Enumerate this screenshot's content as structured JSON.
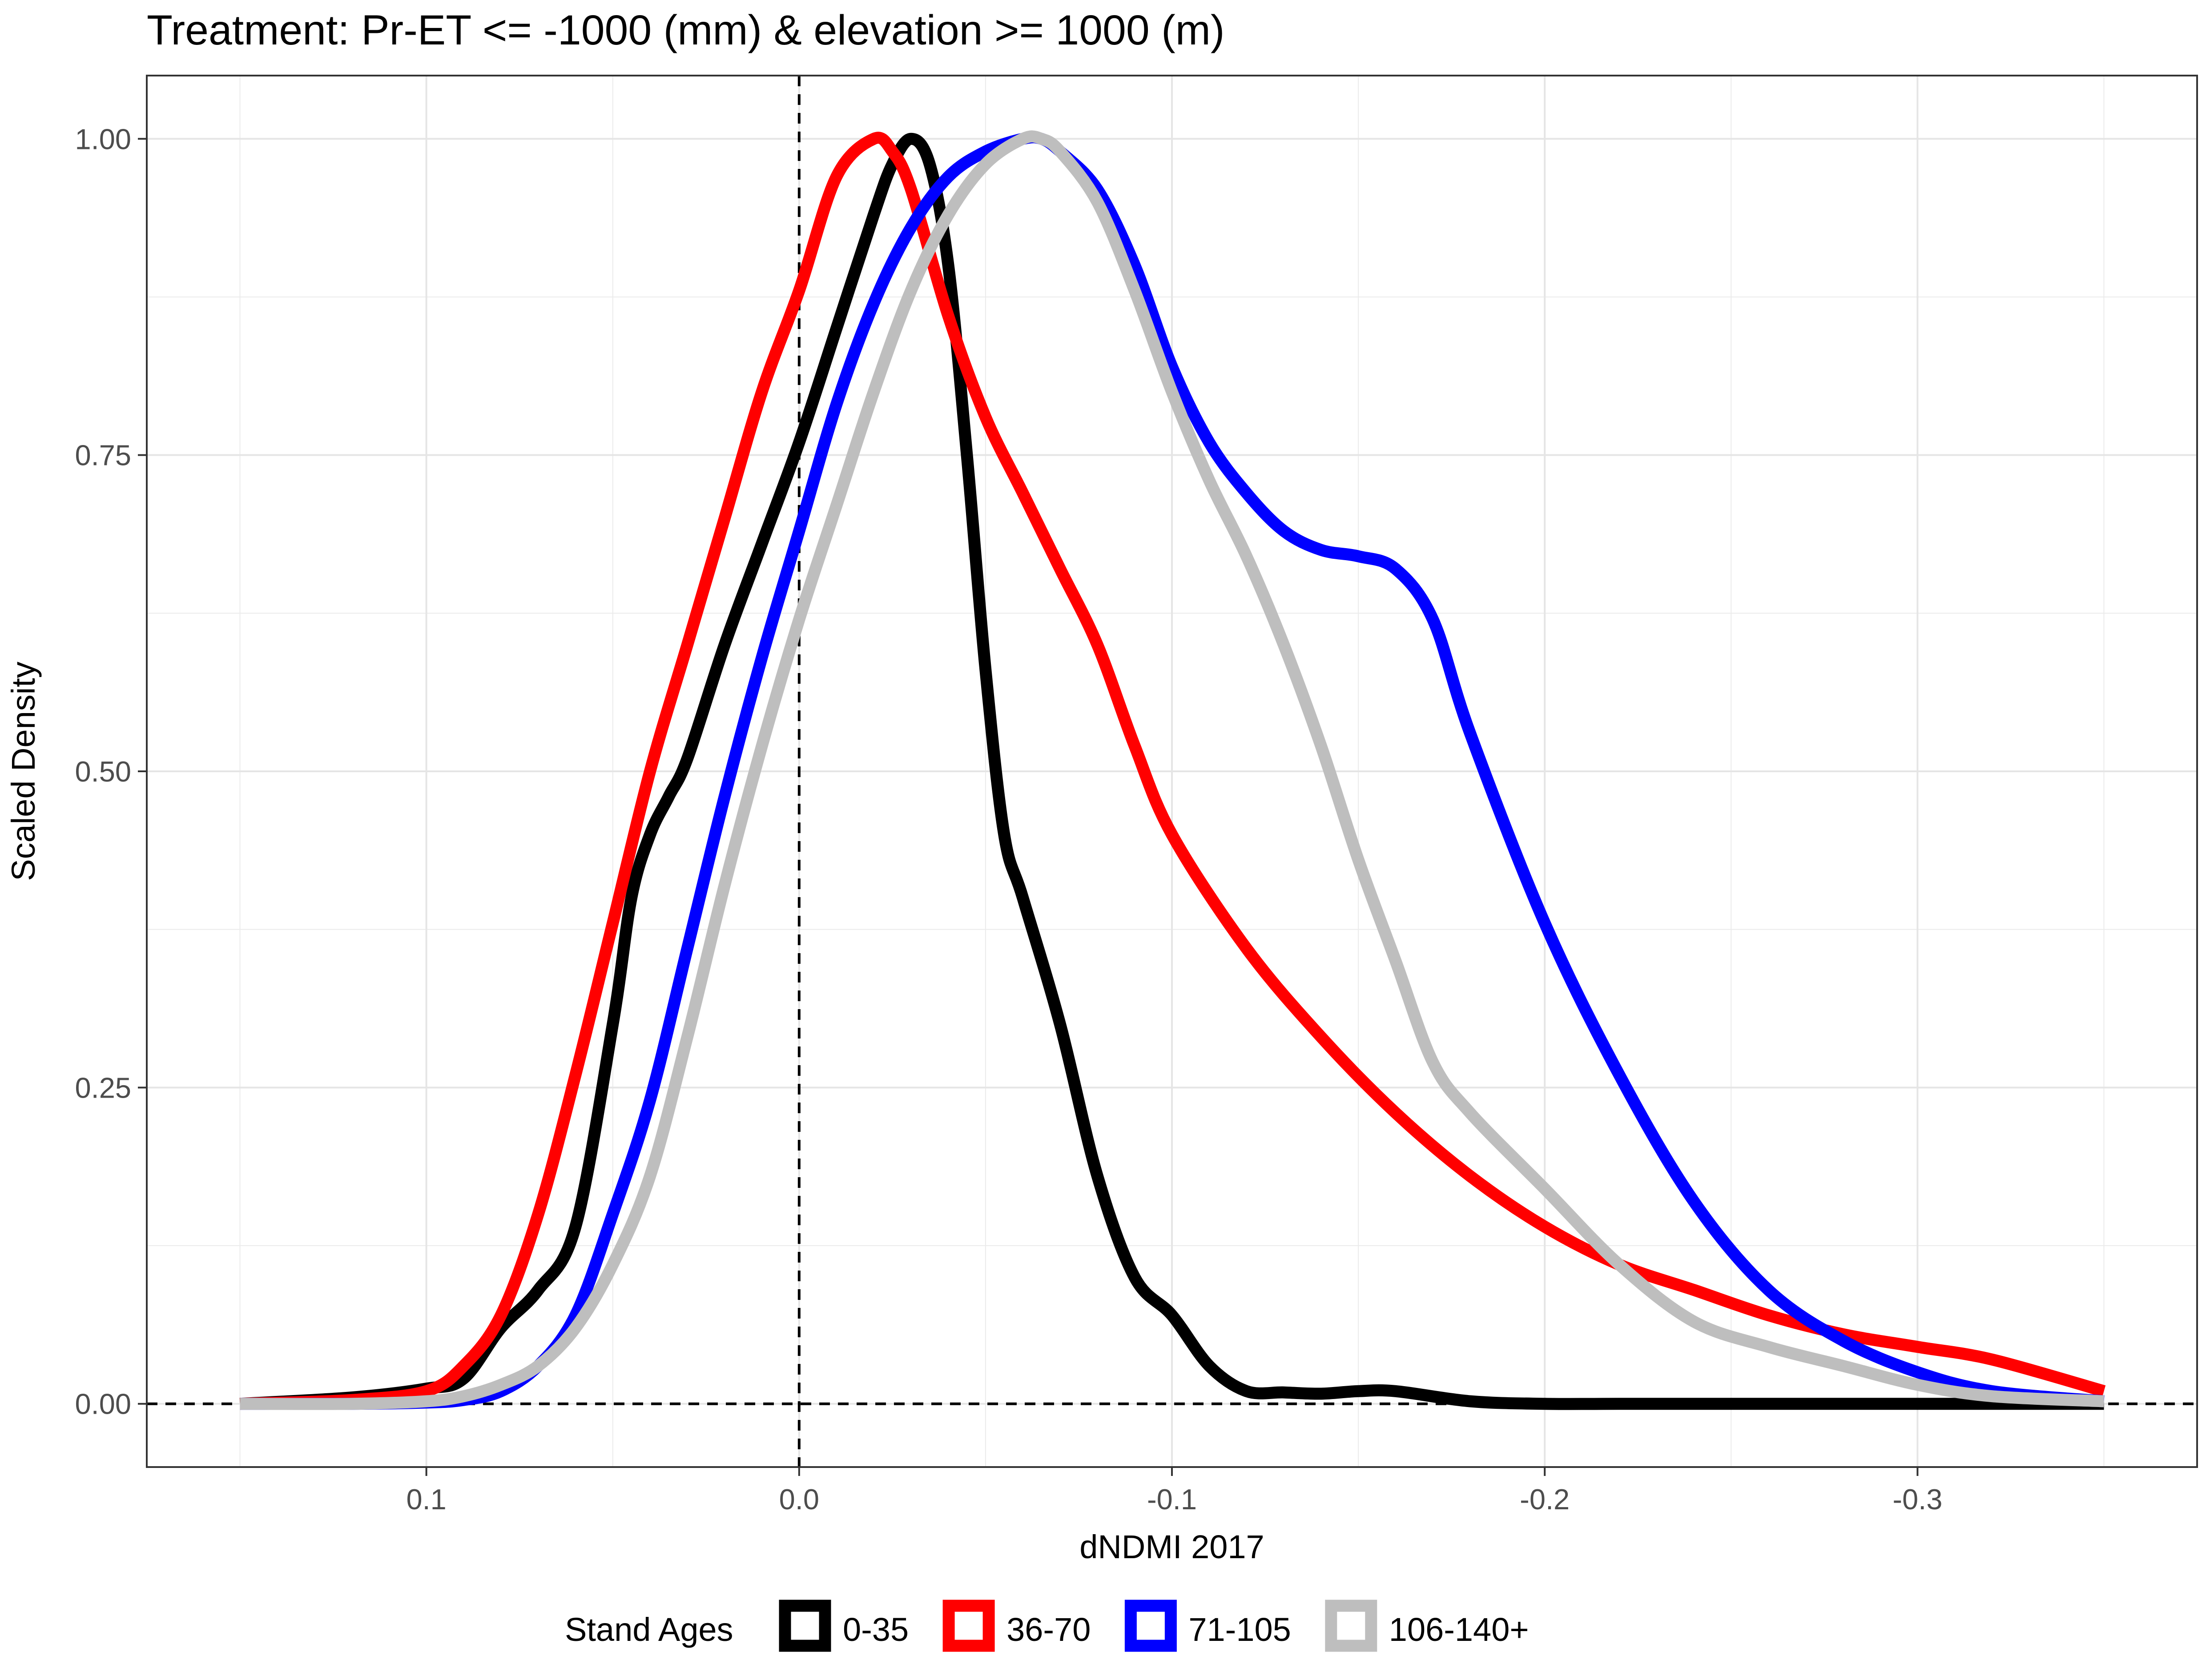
{
  "chart_data": {
    "type": "line",
    "title": "Treatment: Pr-ET <= -1000 (mm) & elevation >= 1000 (m)",
    "xlabel": "dNDMI 2017",
    "ylabel": "Scaled Density",
    "x_reversed": true,
    "xlim": [
      0.175,
      -0.375
    ],
    "ylim": [
      -0.05,
      1.05
    ],
    "x_ticks": [
      0.1,
      0.0,
      -0.1,
      -0.2,
      -0.3
    ],
    "x_tick_labels": [
      "0.1",
      "0.0",
      "-0.1",
      "-0.2",
      "-0.3"
    ],
    "y_ticks": [
      0.0,
      0.25,
      0.5,
      0.75,
      1.0
    ],
    "y_tick_labels": [
      "0.00",
      "0.25",
      "0.50",
      "0.75",
      "1.00"
    ],
    "reference_lines": {
      "vertical_x": 0,
      "horizontal_y": 0,
      "style": "dashed"
    },
    "grid": true,
    "legend": {
      "title": "Stand Ages",
      "position": "bottom"
    },
    "series": [
      {
        "name": "0-35",
        "color": "#000000",
        "x": [
          0.15,
          0.12,
          0.1,
          0.09,
          0.08,
          0.07,
          0.06,
          0.05,
          0.045,
          0.04,
          0.035,
          0.03,
          0.02,
          0.01,
          0.0,
          -0.01,
          -0.02,
          -0.025,
          -0.03,
          -0.035,
          -0.04,
          -0.045,
          -0.05,
          -0.055,
          -0.06,
          -0.07,
          -0.08,
          -0.09,
          -0.1,
          -0.11,
          -0.12,
          -0.13,
          -0.14,
          -0.15,
          -0.16,
          -0.18,
          -0.2,
          -0.22,
          -0.25,
          -0.3,
          -0.35
        ],
        "y": [
          0.0,
          0.005,
          0.012,
          0.02,
          0.06,
          0.09,
          0.14,
          0.3,
          0.4,
          0.45,
          0.48,
          0.51,
          0.6,
          0.68,
          0.76,
          0.85,
          0.94,
          0.98,
          1.0,
          0.98,
          0.9,
          0.75,
          0.58,
          0.45,
          0.4,
          0.3,
          0.18,
          0.1,
          0.07,
          0.03,
          0.01,
          0.009,
          0.008,
          0.01,
          0.01,
          0.002,
          0.0,
          0.0,
          0.0,
          0.0,
          0.0
        ]
      },
      {
        "name": "36-70",
        "color": "#ff0000",
        "x": [
          0.15,
          0.12,
          0.1,
          0.09,
          0.08,
          0.07,
          0.06,
          0.05,
          0.04,
          0.03,
          0.02,
          0.01,
          0.0,
          -0.01,
          -0.02,
          -0.025,
          -0.03,
          -0.04,
          -0.05,
          -0.06,
          -0.07,
          -0.08,
          -0.09,
          -0.1,
          -0.12,
          -0.14,
          -0.16,
          -0.18,
          -0.2,
          -0.22,
          -0.24,
          -0.26,
          -0.28,
          -0.3,
          -0.32,
          -0.35
        ],
        "y": [
          0.0,
          0.003,
          0.01,
          0.03,
          0.07,
          0.15,
          0.26,
          0.38,
          0.5,
          0.6,
          0.7,
          0.8,
          0.88,
          0.97,
          1.0,
          0.99,
          0.96,
          0.86,
          0.78,
          0.72,
          0.66,
          0.6,
          0.52,
          0.45,
          0.36,
          0.29,
          0.23,
          0.18,
          0.14,
          0.11,
          0.09,
          0.07,
          0.055,
          0.045,
          0.035,
          0.01
        ]
      },
      {
        "name": "71-105",
        "color": "#0000ff",
        "x": [
          0.15,
          0.12,
          0.1,
          0.09,
          0.08,
          0.07,
          0.06,
          0.05,
          0.04,
          0.03,
          0.02,
          0.01,
          0.0,
          -0.01,
          -0.02,
          -0.03,
          -0.04,
          -0.05,
          -0.06,
          -0.065,
          -0.07,
          -0.08,
          -0.09,
          -0.1,
          -0.11,
          -0.12,
          -0.13,
          -0.14,
          -0.15,
          -0.16,
          -0.17,
          -0.18,
          -0.2,
          -0.22,
          -0.24,
          -0.26,
          -0.28,
          -0.3,
          -0.32,
          -0.35
        ],
        "y": [
          0.0,
          0.0,
          0.001,
          0.003,
          0.01,
          0.03,
          0.07,
          0.15,
          0.24,
          0.36,
          0.48,
          0.59,
          0.69,
          0.79,
          0.87,
          0.93,
          0.97,
          0.99,
          1.0,
          1.0,
          0.99,
          0.96,
          0.9,
          0.82,
          0.76,
          0.72,
          0.69,
          0.675,
          0.67,
          0.66,
          0.62,
          0.53,
          0.38,
          0.26,
          0.16,
          0.09,
          0.05,
          0.025,
          0.01,
          0.002
        ]
      },
      {
        "name": "106-140+",
        "color": "#bebebe",
        "x": [
          0.15,
          0.12,
          0.1,
          0.09,
          0.08,
          0.07,
          0.06,
          0.05,
          0.04,
          0.03,
          0.02,
          0.01,
          0.0,
          -0.01,
          -0.02,
          -0.03,
          -0.04,
          -0.05,
          -0.06,
          -0.065,
          -0.07,
          -0.08,
          -0.09,
          -0.1,
          -0.11,
          -0.12,
          -0.13,
          -0.14,
          -0.15,
          -0.16,
          -0.17,
          -0.18,
          -0.2,
          -0.22,
          -0.24,
          -0.26,
          -0.28,
          -0.3,
          -0.32,
          -0.35
        ],
        "y": [
          0.0,
          0.0,
          0.002,
          0.006,
          0.015,
          0.03,
          0.06,
          0.11,
          0.18,
          0.29,
          0.41,
          0.52,
          0.62,
          0.71,
          0.8,
          0.88,
          0.94,
          0.98,
          1.0,
          1.0,
          0.99,
          0.95,
          0.88,
          0.8,
          0.73,
          0.67,
          0.6,
          0.52,
          0.43,
          0.35,
          0.27,
          0.23,
          0.17,
          0.11,
          0.065,
          0.045,
          0.03,
          0.015,
          0.006,
          0.002
        ]
      }
    ]
  }
}
